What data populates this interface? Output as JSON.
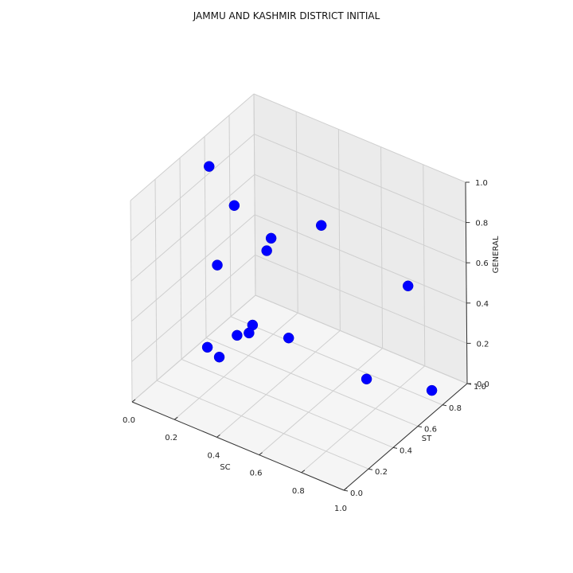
{
  "chart_data": {
    "type": "scatter",
    "projection": "3d",
    "title": "JAMMU AND KASHMIR DISTRICT INITIAL",
    "xlabel": "SC",
    "ylabel": "ST",
    "zlabel": "GENERAL",
    "xlim": [
      0,
      1
    ],
    "ylim": [
      0,
      1
    ],
    "zlim": [
      0,
      1
    ],
    "xticks": [
      "0.0",
      "0.2",
      "0.4",
      "0.6",
      "0.8",
      "1.0"
    ],
    "yticks": [
      "0.0",
      "0.2",
      "0.4",
      "0.6",
      "0.8",
      "1.0"
    ],
    "zticks": [
      "0.0",
      "0.2",
      "0.4",
      "0.6",
      "0.8",
      "1.0"
    ],
    "grid": true,
    "marker_color": "#0000ff",
    "points": [
      {
        "x": 0.05,
        "y": 0.55,
        "z": 0.9
      },
      {
        "x": 0.05,
        "y": 0.75,
        "z": 0.6
      },
      {
        "x": 0.15,
        "y": 0.45,
        "z": 0.05
      },
      {
        "x": 0.25,
        "y": 0.55,
        "z": 0.2
      },
      {
        "x": 0.32,
        "y": 0.55,
        "z": 0.6
      },
      {
        "x": 0.35,
        "y": 0.1,
        "z": 0.78
      },
      {
        "x": 0.3,
        "y": 0.1,
        "z": 0.35
      },
      {
        "x": 0.4,
        "y": 0.45,
        "z": 0.75
      },
      {
        "x": 0.55,
        "y": 0.6,
        "z": 0.8
      },
      {
        "x": 0.45,
        "y": 0.5,
        "z": 0.25
      },
      {
        "x": 0.38,
        "y": 0.3,
        "z": 0.35
      },
      {
        "x": 0.5,
        "y": 0.0,
        "z": 0.55
      },
      {
        "x": 0.95,
        "y": 0.8,
        "z": 0.05
      },
      {
        "x": 0.7,
        "y": 0.7,
        "z": 0.05
      },
      {
        "x": 0.9,
        "y": 0.7,
        "z": 0.6
      }
    ]
  }
}
